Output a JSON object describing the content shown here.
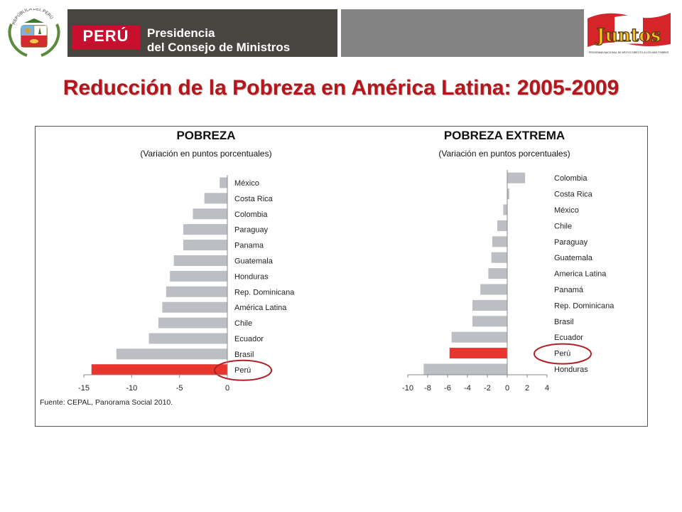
{
  "header": {
    "peru_label": "PERÚ",
    "institution_line1": "Presidencia",
    "institution_line2": "del Consejo de Ministros",
    "coat_of_arms_text": "REPÚBLICA DEL PERÚ",
    "program_logo_text": "Juntos",
    "program_logo_subtext": "PROGRAMA NACIONAL DE APOYO DIRECTO A LOS MÁS POBRES"
  },
  "slide_title": "Reducción de la Pobreza en América Latina: 2005-2009",
  "source_note": "Fuente: CEPAL, Panorama Social 2010.",
  "colors": {
    "bar_default": "#bbbec2",
    "bar_highlight": "#e8352e",
    "title": "#b5161b",
    "circle": "#b01f24"
  },
  "chart_data": [
    {
      "type": "bar",
      "orientation": "horizontal",
      "title": "POBREZA",
      "subtitle": "(Variación en puntos porcentuales)",
      "categories": [
        "México",
        "Costa Rica",
        "Colombia",
        "Paraguay",
        "Panama",
        "Guatemala",
        "Honduras",
        "Rep. Dominicana",
        "América Latina",
        "Chile",
        "Ecuador",
        "Brasil",
        "Perú"
      ],
      "values": [
        -0.8,
        -2.4,
        -3.6,
        -4.6,
        -4.6,
        -5.6,
        -6.0,
        -6.4,
        -6.8,
        -7.2,
        -8.2,
        -11.6,
        -14.2
      ],
      "highlight": "Perú",
      "circled": "Perú",
      "xlim": [
        -15,
        0
      ],
      "xticks": [
        -15,
        -10,
        -5,
        0
      ]
    },
    {
      "type": "bar",
      "orientation": "horizontal",
      "title": "POBREZA EXTREMA",
      "subtitle": "(Variación en puntos porcentuales)",
      "categories": [
        "Colombia",
        "Costa Rica",
        "México",
        "Chile",
        "Paraguay",
        "Guatemala",
        "America Latina",
        "Panamá",
        "Rep. Dominicana",
        "Brasil",
        "Ecuador",
        "Perú",
        "Honduras"
      ],
      "values": [
        1.8,
        0.2,
        -0.4,
        -1.0,
        -1.5,
        -1.6,
        -1.9,
        -2.7,
        -3.5,
        -3.5,
        -5.6,
        -5.8,
        -8.4
      ],
      "highlight": "Perú",
      "circled": "Perú",
      "xlim": [
        -10,
        4
      ],
      "xticks": [
        -10,
        -8,
        -6,
        -4,
        -2,
        0,
        2,
        4
      ]
    }
  ]
}
